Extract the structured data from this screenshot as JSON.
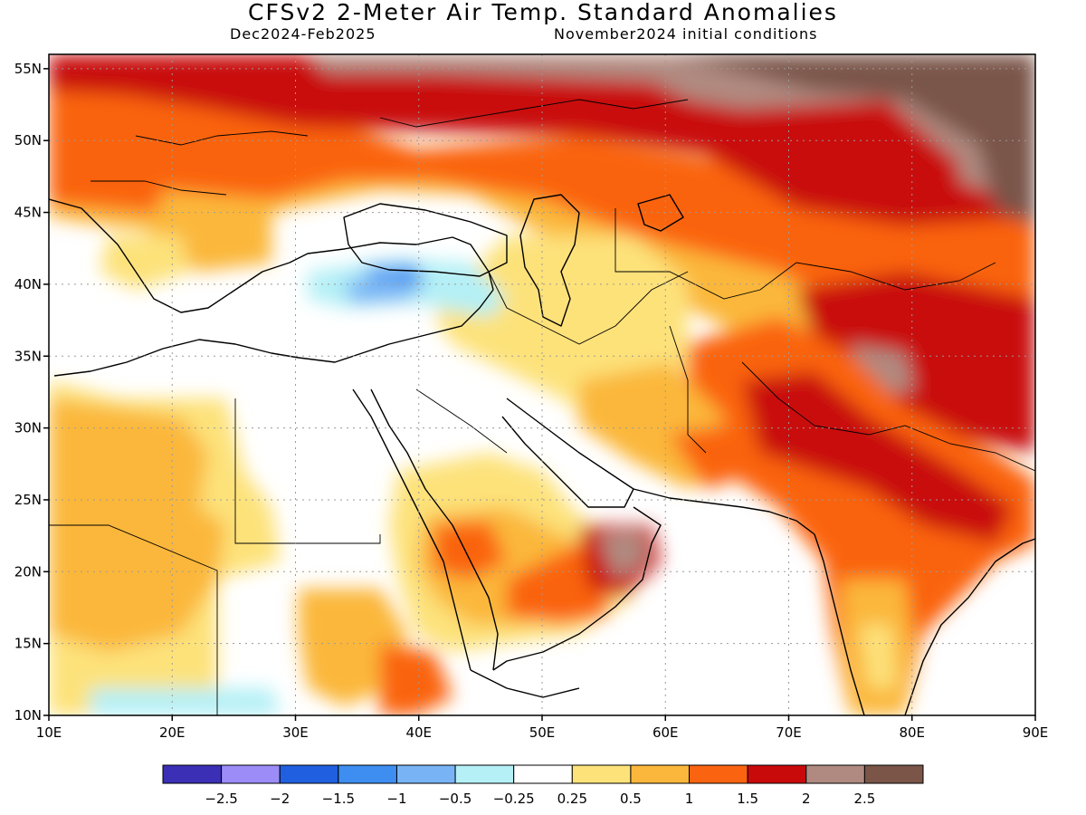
{
  "title": "CFSv2 2-Meter Air Temp. Standard Anomalies",
  "subtitle_left": "Dec2024-Feb2025",
  "subtitle_right": "November2024 initial conditions",
  "map": {
    "lon_range": [
      10,
      90
    ],
    "lat_range": [
      10,
      56
    ],
    "grid": "dotted",
    "lon_ticks": [
      "10E",
      "20E",
      "30E",
      "40E",
      "50E",
      "60E",
      "70E",
      "80E",
      "90E"
    ],
    "lat_ticks": [
      "10N",
      "15N",
      "20N",
      "25N",
      "30N",
      "35N",
      "40N",
      "45N",
      "50N",
      "55N"
    ]
  },
  "colorbar": {
    "colors": [
      "#3a2fb5",
      "#9b8cf7",
      "#2060e0",
      "#3d8ef0",
      "#78b4f5",
      "#b4f0f6",
      "#ffffff",
      "#fde27a",
      "#fbb73b",
      "#fa6310",
      "#c90a0a",
      "#b08a80",
      "#7a5548"
    ],
    "labels": [
      "-2.5",
      "-2",
      "-1.5",
      "-1",
      "-0.5",
      "-0.25",
      "0.25",
      "0.5",
      "1",
      "1.5",
      "2",
      "2.5"
    ]
  }
}
